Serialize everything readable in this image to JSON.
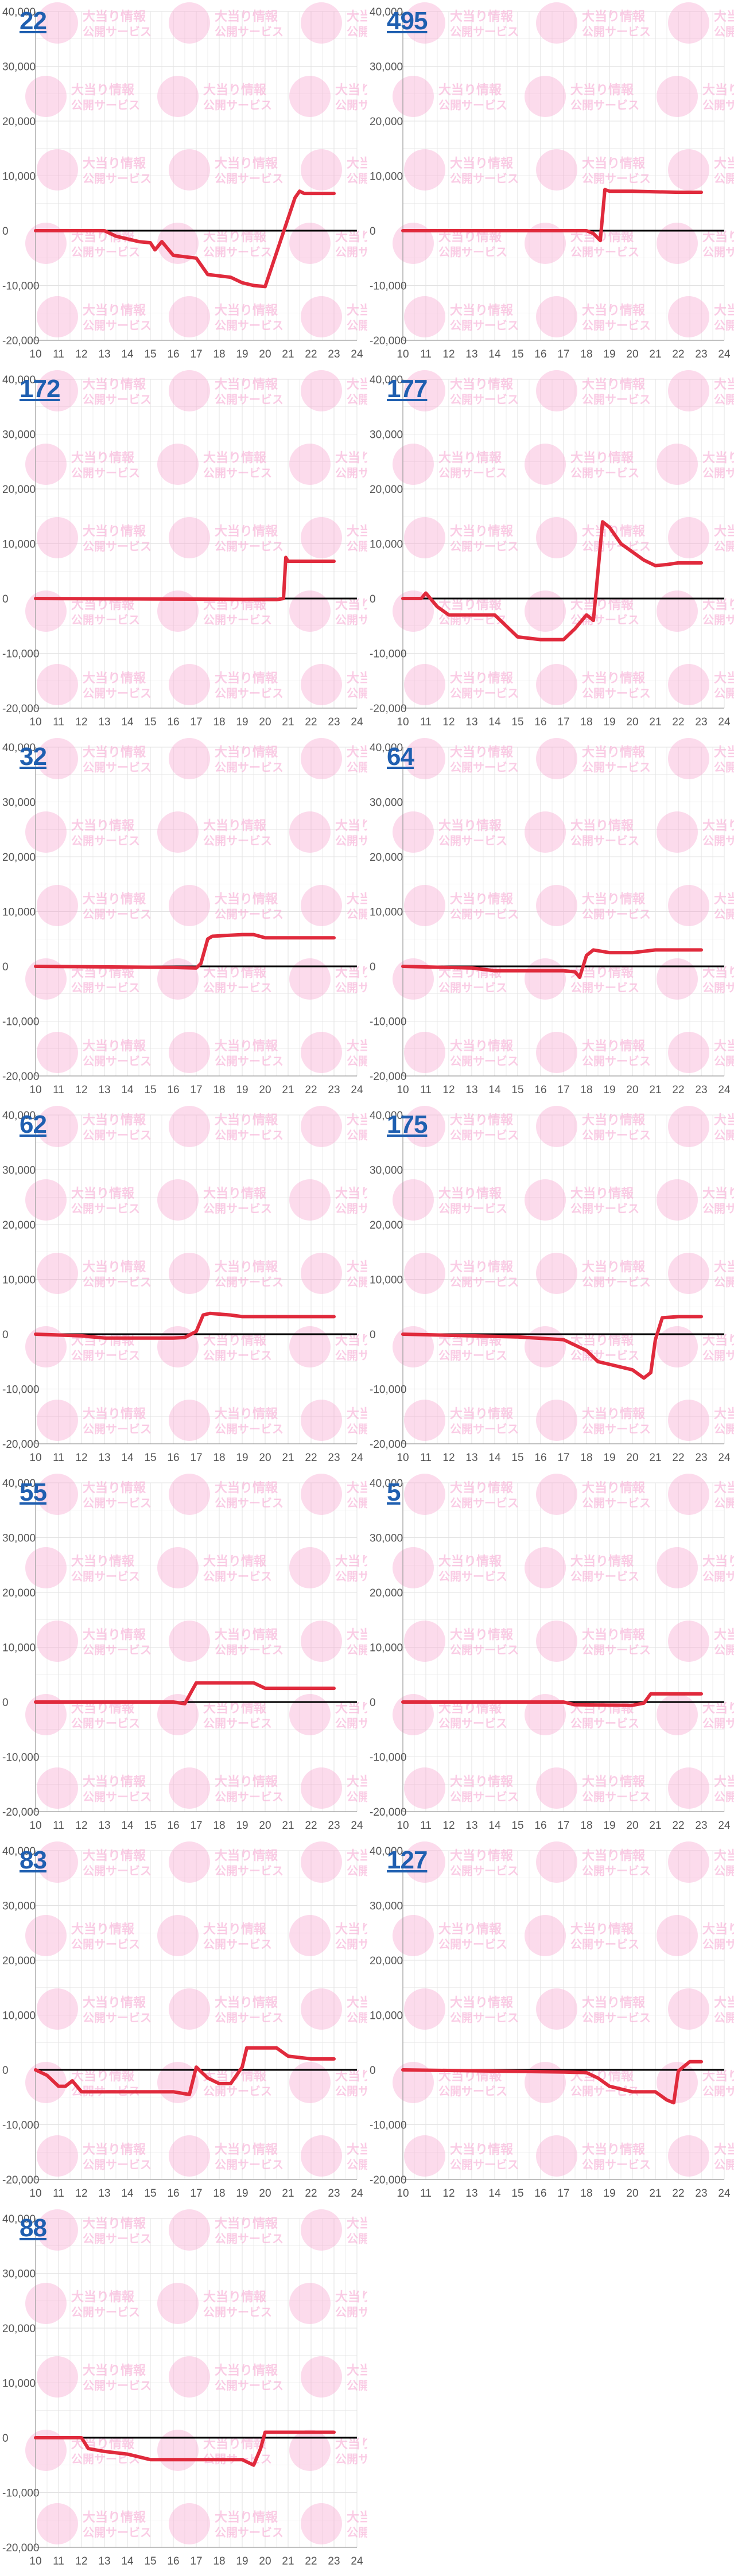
{
  "watermark": {
    "title": "大当り情報",
    "subtitle": "公開サービス",
    "color": "#f6a3cf"
  },
  "style": {
    "line_color": "#e02a3c",
    "axis_color": "#000000",
    "grid_color": "#e2e2e2",
    "label_color": "#555555",
    "link_color": "#1f5fb0"
  },
  "chart_data": [
    {
      "type": "line",
      "machine": "22",
      "xlim": [
        10,
        24
      ],
      "ylim": [
        -20000,
        40000
      ],
      "x_ticks": [
        "10",
        "11",
        "12",
        "13",
        "14",
        "15",
        "16",
        "17",
        "18",
        "19",
        "20",
        "21",
        "22",
        "23",
        "24"
      ],
      "y_ticks": [
        "40,000",
        "30,000",
        "20,000",
        "10,000",
        "0",
        "-10,000",
        "-20,000"
      ],
      "series": [
        {
          "x": [
            10,
            13,
            13.5,
            14.5,
            15,
            15.2,
            15.5,
            16,
            17,
            17.5,
            18.5,
            19,
            19.5,
            20,
            21.3,
            21.5,
            21.7,
            22,
            23
          ],
          "y": [
            0,
            0,
            -1000,
            -2000,
            -2200,
            -3500,
            -2000,
            -4500,
            -5000,
            -8000,
            -8500,
            -9500,
            -10000,
            -10200,
            6000,
            7200,
            6800,
            6800,
            6800
          ]
        }
      ]
    },
    {
      "type": "line",
      "machine": "495",
      "xlim": [
        10,
        24
      ],
      "ylim": [
        -20000,
        40000
      ],
      "x_ticks": [
        "10",
        "11",
        "12",
        "13",
        "14",
        "15",
        "16",
        "17",
        "18",
        "19",
        "20",
        "21",
        "22",
        "23",
        "24"
      ],
      "y_ticks": [
        "40,000",
        "30,000",
        "20,000",
        "10,000",
        "0",
        "-10,000",
        "-20,000"
      ],
      "series": [
        {
          "x": [
            10,
            18,
            18.3,
            18.6,
            18.8,
            19,
            20,
            21,
            22,
            23
          ],
          "y": [
            0,
            0,
            -500,
            -1800,
            7500,
            7200,
            7200,
            7100,
            7000,
            7000
          ]
        }
      ]
    },
    {
      "type": "line",
      "machine": "172",
      "xlim": [
        10,
        24
      ],
      "ylim": [
        -20000,
        40000
      ],
      "x_ticks": [
        "10",
        "11",
        "12",
        "13",
        "14",
        "15",
        "16",
        "17",
        "18",
        "19",
        "20",
        "21",
        "22",
        "23",
        "24"
      ],
      "y_ticks": [
        "40,000",
        "30,000",
        "20,000",
        "10,000",
        "0",
        "-10,000",
        "-20,000"
      ],
      "series": [
        {
          "x": [
            10,
            17,
            20.5,
            20.8,
            20.9,
            21,
            22,
            23
          ],
          "y": [
            0,
            -100,
            -200,
            0,
            7500,
            6800,
            6800,
            6800
          ]
        }
      ]
    },
    {
      "type": "line",
      "machine": "177",
      "xlim": [
        10,
        24
      ],
      "ylim": [
        -20000,
        40000
      ],
      "x_ticks": [
        "10",
        "11",
        "12",
        "13",
        "14",
        "15",
        "16",
        "17",
        "18",
        "19",
        "20",
        "21",
        "22",
        "23",
        "24"
      ],
      "y_ticks": [
        "40,000",
        "30,000",
        "20,000",
        "10,000",
        "0",
        "-10,000",
        "-20,000"
      ],
      "series": [
        {
          "x": [
            10,
            10.8,
            11,
            11.5,
            12,
            14,
            15,
            16,
            17,
            17.5,
            18,
            18.3,
            18.5,
            18.7,
            19,
            19.5,
            20,
            20.5,
            21,
            21.5,
            22,
            23
          ],
          "y": [
            0,
            0,
            1000,
            -1500,
            -3000,
            -3000,
            -7000,
            -7500,
            -7500,
            -5500,
            -3000,
            -4000,
            5000,
            14000,
            13000,
            10000,
            8500,
            7000,
            6000,
            6200,
            6500,
            6500
          ]
        }
      ]
    },
    {
      "type": "line",
      "machine": "32",
      "xlim": [
        10,
        24
      ],
      "ylim": [
        -20000,
        40000
      ],
      "x_ticks": [
        "10",
        "11",
        "12",
        "13",
        "14",
        "15",
        "16",
        "17",
        "18",
        "19",
        "20",
        "21",
        "22",
        "23",
        "24"
      ],
      "y_ticks": [
        "40,000",
        "30,000",
        "20,000",
        "10,000",
        "0",
        "-10,000",
        "-20,000"
      ],
      "series": [
        {
          "x": [
            10,
            16,
            17,
            17.2,
            17.5,
            17.7,
            19,
            19.5,
            20,
            21,
            22,
            23
          ],
          "y": [
            0,
            -200,
            -300,
            500,
            5000,
            5500,
            5800,
            5800,
            5200,
            5200,
            5200,
            5200
          ]
        }
      ]
    },
    {
      "type": "line",
      "machine": "64",
      "xlim": [
        10,
        24
      ],
      "ylim": [
        -20000,
        40000
      ],
      "x_ticks": [
        "10",
        "11",
        "12",
        "13",
        "14",
        "15",
        "16",
        "17",
        "18",
        "19",
        "20",
        "21",
        "22",
        "23",
        "24"
      ],
      "y_ticks": [
        "40,000",
        "30,000",
        "20,000",
        "10,000",
        "0",
        "-10,000",
        "-20,000"
      ],
      "series": [
        {
          "x": [
            10,
            13,
            14,
            17,
            17.5,
            17.7,
            18,
            18.3,
            19,
            20,
            21,
            22,
            23
          ],
          "y": [
            0,
            -300,
            -800,
            -800,
            -1000,
            -2000,
            2000,
            3000,
            2500,
            2500,
            3000,
            3000,
            3000
          ]
        }
      ]
    },
    {
      "type": "line",
      "machine": "62",
      "xlim": [
        10,
        24
      ],
      "ylim": [
        -20000,
        40000
      ],
      "x_ticks": [
        "10",
        "11",
        "12",
        "13",
        "14",
        "15",
        "16",
        "17",
        "18",
        "19",
        "20",
        "21",
        "22",
        "23",
        "24"
      ],
      "y_ticks": [
        "40,000",
        "30,000",
        "20,000",
        "10,000",
        "0",
        "-10,000",
        "-20,000"
      ],
      "series": [
        {
          "x": [
            10,
            12,
            13,
            16,
            16.5,
            17,
            17.3,
            17.6,
            18.5,
            19,
            20,
            21,
            22,
            23
          ],
          "y": [
            0,
            -300,
            -700,
            -700,
            -600,
            500,
            3500,
            3800,
            3500,
            3200,
            3200,
            3200,
            3200,
            3200
          ]
        }
      ]
    },
    {
      "type": "line",
      "machine": "175",
      "xlim": [
        10,
        24
      ],
      "ylim": [
        -20000,
        40000
      ],
      "x_ticks": [
        "10",
        "11",
        "12",
        "13",
        "14",
        "15",
        "16",
        "17",
        "18",
        "19",
        "20",
        "21",
        "22",
        "23",
        "24"
      ],
      "y_ticks": [
        "40,000",
        "30,000",
        "20,000",
        "10,000",
        "0",
        "-10,000",
        "-20,000"
      ],
      "series": [
        {
          "x": [
            10,
            15,
            17,
            18,
            18.5,
            19,
            19.5,
            20,
            20.5,
            20.8,
            21,
            21.3,
            22,
            23
          ],
          "y": [
            0,
            -500,
            -1000,
            -3000,
            -5000,
            -5500,
            -6000,
            -6500,
            -8000,
            -7000,
            -1000,
            3000,
            3200,
            3200
          ]
        }
      ]
    },
    {
      "type": "line",
      "machine": "55",
      "xlim": [
        10,
        24
      ],
      "ylim": [
        -20000,
        40000
      ],
      "x_ticks": [
        "10",
        "11",
        "12",
        "13",
        "14",
        "15",
        "16",
        "17",
        "18",
        "19",
        "20",
        "21",
        "22",
        "23",
        "24"
      ],
      "y_ticks": [
        "40,000",
        "30,000",
        "20,000",
        "10,000",
        "0",
        "-10,000",
        "-20,000"
      ],
      "series": [
        {
          "x": [
            10,
            16,
            16.5,
            16.8,
            17,
            19,
            19.5,
            20,
            21,
            22,
            23
          ],
          "y": [
            0,
            0,
            -300,
            2000,
            3500,
            3500,
            3500,
            2500,
            2500,
            2500,
            2500
          ]
        }
      ]
    },
    {
      "type": "line",
      "machine": "5",
      "xlim": [
        10,
        24
      ],
      "ylim": [
        -20000,
        40000
      ],
      "x_ticks": [
        "10",
        "11",
        "12",
        "13",
        "14",
        "15",
        "16",
        "17",
        "18",
        "19",
        "20",
        "21",
        "22",
        "23",
        "24"
      ],
      "y_ticks": [
        "40,000",
        "30,000",
        "20,000",
        "10,000",
        "0",
        "-10,000",
        "-20,000"
      ],
      "series": [
        {
          "x": [
            10,
            17,
            17.5,
            20,
            20.5,
            20.8,
            21,
            22,
            23
          ],
          "y": [
            0,
            0,
            -500,
            -600,
            -200,
            1500,
            1500,
            1500,
            1500
          ]
        }
      ]
    },
    {
      "type": "line",
      "machine": "83",
      "xlim": [
        10,
        24
      ],
      "ylim": [
        -20000,
        40000
      ],
      "x_ticks": [
        "10",
        "11",
        "12",
        "13",
        "14",
        "15",
        "16",
        "17",
        "18",
        "19",
        "20",
        "21",
        "22",
        "23",
        "24"
      ],
      "y_ticks": [
        "40,000",
        "30,000",
        "20,000",
        "10,000",
        "0",
        "-10,000",
        "-20,000"
      ],
      "series": [
        {
          "x": [
            10,
            10.5,
            11,
            11.3,
            11.6,
            12,
            13,
            16,
            16.7,
            17,
            17.5,
            18,
            18.5,
            19,
            19.2,
            19.5,
            20,
            20.5,
            21,
            22,
            23
          ],
          "y": [
            0,
            -1000,
            -3000,
            -3000,
            -2000,
            -4000,
            -4000,
            -4000,
            -4500,
            500,
            -1500,
            -2500,
            -2500,
            500,
            4000,
            4000,
            4000,
            4000,
            2500,
            2000,
            2000
          ]
        }
      ]
    },
    {
      "type": "line",
      "machine": "127",
      "xlim": [
        10,
        24
      ],
      "ylim": [
        -20000,
        40000
      ],
      "x_ticks": [
        "10",
        "11",
        "12",
        "13",
        "14",
        "15",
        "16",
        "17",
        "18",
        "19",
        "20",
        "21",
        "22",
        "23",
        "24"
      ],
      "y_ticks": [
        "40,000",
        "30,000",
        "20,000",
        "10,000",
        "0",
        "-10,000",
        "-20,000"
      ],
      "series": [
        {
          "x": [
            10,
            17,
            18,
            18.5,
            19,
            19.5,
            20,
            21,
            21.5,
            21.8,
            22,
            22.5,
            23
          ],
          "y": [
            0,
            -400,
            -500,
            -1500,
            -3000,
            -3500,
            -4000,
            -4000,
            -5500,
            -6000,
            -200,
            1500,
            1500
          ]
        }
      ]
    },
    {
      "type": "line",
      "machine": "88",
      "xlim": [
        10,
        24
      ],
      "ylim": [
        -20000,
        40000
      ],
      "x_ticks": [
        "10",
        "11",
        "12",
        "13",
        "14",
        "15",
        "16",
        "17",
        "18",
        "19",
        "20",
        "21",
        "22",
        "23",
        "24"
      ],
      "y_ticks": [
        "40,000",
        "30,000",
        "20,000",
        "10,000",
        "0",
        "-10,000",
        "-20,000"
      ],
      "series": [
        {
          "x": [
            10,
            12,
            12.3,
            13,
            14,
            15,
            16,
            17,
            18,
            19,
            19.5,
            19.8,
            20,
            21,
            22,
            23
          ],
          "y": [
            0,
            0,
            -2000,
            -2500,
            -3000,
            -4000,
            -4000,
            -4000,
            -4000,
            -4000,
            -5000,
            -2000,
            1000,
            1000,
            1000,
            1000
          ]
        }
      ]
    }
  ]
}
